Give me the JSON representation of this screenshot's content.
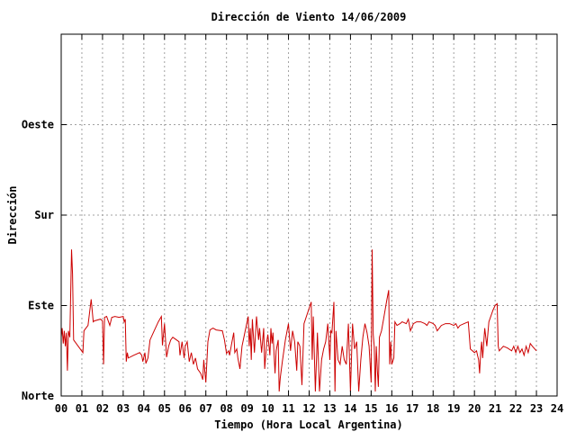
{
  "chart_data": {
    "type": "line",
    "title": "Dirección de Viento 14/06/2009",
    "xlabel": "Tiempo (Hora Local Argentina)",
    "ylabel": "Dirección",
    "xlim": [
      0,
      24
    ],
    "ylim": [
      0,
      4
    ],
    "x_ticks": [
      "00",
      "01",
      "02",
      "03",
      "04",
      "05",
      "06",
      "07",
      "08",
      "09",
      "10",
      "11",
      "12",
      "13",
      "14",
      "15",
      "16",
      "17",
      "18",
      "19",
      "20",
      "21",
      "22",
      "23",
      "24"
    ],
    "y_ticks": [
      {
        "value": 0,
        "label": "Norte"
      },
      {
        "value": 1,
        "label": "Este"
      },
      {
        "value": 2,
        "label": "Sur"
      },
      {
        "value": 3,
        "label": "Oeste"
      }
    ],
    "grid": true,
    "series": [
      {
        "color": "#cc0000",
        "points": [
          [
            0.0,
            0.65
          ],
          [
            0.05,
            0.75
          ],
          [
            0.1,
            0.58
          ],
          [
            0.15,
            0.72
          ],
          [
            0.2,
            0.55
          ],
          [
            0.25,
            0.7
          ],
          [
            0.3,
            0.28
          ],
          [
            0.35,
            0.72
          ],
          [
            0.42,
            0.65
          ],
          [
            0.5,
            1.62
          ],
          [
            0.55,
            1.35
          ],
          [
            0.6,
            0.62
          ],
          [
            1.05,
            0.48
          ],
          [
            1.1,
            0.72
          ],
          [
            1.2,
            0.75
          ],
          [
            1.3,
            0.78
          ],
          [
            1.45,
            1.07
          ],
          [
            1.55,
            0.82
          ],
          [
            1.6,
            0.83
          ],
          [
            1.9,
            0.85
          ],
          [
            2.0,
            0.83
          ],
          [
            2.05,
            0.35
          ],
          [
            2.1,
            0.87
          ],
          [
            2.2,
            0.88
          ],
          [
            2.35,
            0.78
          ],
          [
            2.45,
            0.87
          ],
          [
            2.6,
            0.88
          ],
          [
            2.8,
            0.87
          ],
          [
            3.0,
            0.88
          ],
          [
            3.05,
            0.82
          ],
          [
            3.1,
            0.85
          ],
          [
            3.15,
            0.38
          ],
          [
            3.2,
            0.48
          ],
          [
            3.25,
            0.42
          ],
          [
            3.5,
            0.45
          ],
          [
            3.8,
            0.48
          ],
          [
            3.9,
            0.45
          ],
          [
            3.95,
            0.38
          ],
          [
            4.05,
            0.48
          ],
          [
            4.1,
            0.36
          ],
          [
            4.2,
            0.42
          ],
          [
            4.3,
            0.62
          ],
          [
            4.5,
            0.72
          ],
          [
            4.7,
            0.82
          ],
          [
            4.85,
            0.88
          ],
          [
            4.9,
            0.56
          ],
          [
            5.0,
            0.8
          ],
          [
            5.1,
            0.43
          ],
          [
            5.2,
            0.55
          ],
          [
            5.3,
            0.62
          ],
          [
            5.4,
            0.65
          ],
          [
            5.7,
            0.6
          ],
          [
            5.75,
            0.45
          ],
          [
            5.85,
            0.6
          ],
          [
            5.95,
            0.42
          ],
          [
            6.0,
            0.55
          ],
          [
            6.1,
            0.6
          ],
          [
            6.2,
            0.38
          ],
          [
            6.3,
            0.48
          ],
          [
            6.4,
            0.35
          ],
          [
            6.5,
            0.42
          ],
          [
            6.6,
            0.3
          ],
          [
            6.75,
            0.25
          ],
          [
            6.85,
            0.18
          ],
          [
            6.9,
            0.4
          ],
          [
            7.0,
            0.15
          ],
          [
            7.1,
            0.6
          ],
          [
            7.2,
            0.73
          ],
          [
            7.35,
            0.75
          ],
          [
            7.5,
            0.73
          ],
          [
            7.8,
            0.72
          ],
          [
            7.9,
            0.62
          ],
          [
            8.0,
            0.47
          ],
          [
            8.1,
            0.5
          ],
          [
            8.15,
            0.45
          ],
          [
            8.25,
            0.58
          ],
          [
            8.35,
            0.7
          ],
          [
            8.4,
            0.48
          ],
          [
            8.5,
            0.52
          ],
          [
            8.55,
            0.42
          ],
          [
            8.65,
            0.3
          ],
          [
            8.75,
            0.55
          ],
          [
            9.05,
            0.88
          ],
          [
            9.1,
            0.55
          ],
          [
            9.15,
            0.75
          ],
          [
            9.2,
            0.4
          ],
          [
            9.25,
            0.85
          ],
          [
            9.35,
            0.48
          ],
          [
            9.45,
            0.88
          ],
          [
            9.55,
            0.62
          ],
          [
            9.6,
            0.75
          ],
          [
            9.7,
            0.48
          ],
          [
            9.8,
            0.75
          ],
          [
            9.85,
            0.3
          ],
          [
            9.95,
            0.6
          ],
          [
            10.0,
            0.68
          ],
          [
            10.1,
            0.45
          ],
          [
            10.15,
            0.75
          ],
          [
            10.2,
            0.58
          ],
          [
            10.25,
            0.7
          ],
          [
            10.35,
            0.25
          ],
          [
            10.4,
            0.5
          ],
          [
            10.5,
            0.62
          ],
          [
            10.55,
            0.05
          ],
          [
            10.6,
            0.2
          ],
          [
            10.7,
            0.38
          ],
          [
            10.85,
            0.62
          ],
          [
            11.0,
            0.8
          ],
          [
            11.1,
            0.5
          ],
          [
            11.2,
            0.72
          ],
          [
            11.3,
            0.6
          ],
          [
            11.4,
            0.28
          ],
          [
            11.45,
            0.6
          ],
          [
            11.55,
            0.55
          ],
          [
            11.65,
            0.12
          ],
          [
            11.75,
            0.8
          ],
          [
            12.1,
            1.04
          ],
          [
            12.15,
            0.4
          ],
          [
            12.2,
            0.88
          ],
          [
            12.3,
            0.05
          ],
          [
            12.4,
            0.7
          ],
          [
            12.5,
            0.05
          ],
          [
            12.6,
            0.4
          ],
          [
            12.7,
            0.52
          ],
          [
            12.8,
            0.6
          ],
          [
            12.9,
            0.8
          ],
          [
            13.0,
            0.4
          ],
          [
            13.05,
            0.72
          ],
          [
            13.1,
            0.7
          ],
          [
            13.2,
            1.04
          ],
          [
            13.25,
            0.05
          ],
          [
            13.3,
            0.72
          ],
          [
            13.4,
            0.4
          ],
          [
            13.5,
            0.35
          ],
          [
            13.6,
            0.55
          ],
          [
            13.7,
            0.4
          ],
          [
            13.8,
            0.35
          ],
          [
            13.9,
            0.8
          ],
          [
            14.0,
            0.05
          ],
          [
            14.1,
            0.8
          ],
          [
            14.2,
            0.52
          ],
          [
            14.3,
            0.6
          ],
          [
            14.4,
            0.05
          ],
          [
            14.5,
            0.4
          ],
          [
            14.6,
            0.65
          ],
          [
            14.7,
            0.8
          ],
          [
            14.8,
            0.7
          ],
          [
            14.9,
            0.55
          ],
          [
            15.0,
            0.15
          ],
          [
            15.05,
            1.62
          ],
          [
            15.1,
            0.68
          ],
          [
            15.15,
            0.55
          ],
          [
            15.2,
            0.05
          ],
          [
            15.25,
            0.55
          ],
          [
            15.3,
            0.28
          ],
          [
            15.35,
            0.1
          ],
          [
            15.4,
            0.65
          ],
          [
            15.5,
            0.72
          ],
          [
            15.6,
            0.85
          ],
          [
            15.75,
            1.05
          ],
          [
            15.85,
            1.17
          ],
          [
            15.9,
            0.35
          ],
          [
            15.95,
            0.6
          ],
          [
            16.0,
            0.35
          ],
          [
            16.1,
            0.42
          ],
          [
            16.15,
            0.82
          ],
          [
            16.25,
            0.78
          ],
          [
            16.4,
            0.8
          ],
          [
            16.5,
            0.82
          ],
          [
            16.7,
            0.8
          ],
          [
            16.8,
            0.85
          ],
          [
            16.9,
            0.72
          ],
          [
            17.05,
            0.8
          ],
          [
            17.2,
            0.82
          ],
          [
            17.4,
            0.82
          ],
          [
            17.6,
            0.8
          ],
          [
            17.7,
            0.78
          ],
          [
            17.8,
            0.82
          ],
          [
            18.0,
            0.8
          ],
          [
            18.1,
            0.78
          ],
          [
            18.2,
            0.72
          ],
          [
            18.4,
            0.78
          ],
          [
            18.6,
            0.8
          ],
          [
            18.8,
            0.8
          ],
          [
            19.0,
            0.78
          ],
          [
            19.1,
            0.8
          ],
          [
            19.2,
            0.75
          ],
          [
            19.3,
            0.78
          ],
          [
            19.5,
            0.8
          ],
          [
            19.7,
            0.82
          ],
          [
            19.8,
            0.52
          ],
          [
            20.0,
            0.48
          ],
          [
            20.1,
            0.5
          ],
          [
            20.15,
            0.45
          ],
          [
            20.2,
            0.4
          ],
          [
            20.25,
            0.25
          ],
          [
            20.3,
            0.48
          ],
          [
            20.35,
            0.6
          ],
          [
            20.4,
            0.42
          ],
          [
            20.5,
            0.75
          ],
          [
            20.6,
            0.55
          ],
          [
            20.7,
            0.82
          ],
          [
            20.9,
            0.95
          ],
          [
            21.0,
            1.0
          ],
          [
            21.1,
            1.02
          ],
          [
            21.15,
            0.55
          ],
          [
            21.2,
            0.5
          ],
          [
            21.4,
            0.55
          ],
          [
            21.6,
            0.53
          ],
          [
            21.8,
            0.5
          ],
          [
            21.9,
            0.55
          ],
          [
            22.0,
            0.48
          ],
          [
            22.1,
            0.55
          ],
          [
            22.2,
            0.48
          ],
          [
            22.3,
            0.52
          ],
          [
            22.4,
            0.45
          ],
          [
            22.5,
            0.55
          ],
          [
            22.6,
            0.48
          ],
          [
            22.7,
            0.58
          ],
          [
            22.8,
            0.55
          ],
          [
            23.0,
            0.5
          ]
        ]
      }
    ]
  }
}
